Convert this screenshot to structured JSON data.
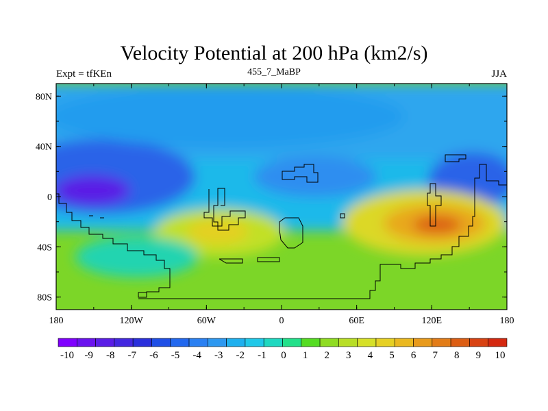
{
  "chart_data": {
    "type": "heatmap",
    "title": "Velocity Potential at 200 hPa (km2/s)",
    "left_label": "Expt = tfKEn",
    "center_label": "455_7_MaBP",
    "right_label": "JJA",
    "xticks": [
      "180",
      "120W",
      "60W",
      "0",
      "60E",
      "120E",
      "180"
    ],
    "yticks": [
      "80N",
      "40N",
      "0",
      "40S",
      "80S"
    ],
    "xlim": [
      -180,
      180
    ],
    "ylim": [
      -90,
      90
    ],
    "colorbar_labels": [
      "-10",
      "-9",
      "-8",
      "-7",
      "-6",
      "-5",
      "-4",
      "-3",
      "-2",
      "-1",
      "0",
      "1",
      "2",
      "3",
      "4",
      "5",
      "6",
      "7",
      "8",
      "9",
      "10"
    ],
    "colorbar_colors": [
      "#7f00ff",
      "#6a12ee",
      "#5a1de6",
      "#4327e0",
      "#2a2fdc",
      "#1f4fe6",
      "#2268ee",
      "#2a80f2",
      "#2d98f0",
      "#1fb0ee",
      "#20c8e8",
      "#1fd8c0",
      "#22e08a",
      "#55dc22",
      "#8fdc22",
      "#b8de26",
      "#d6e028",
      "#e6d024",
      "#eab820",
      "#e89a1c",
      "#e27c18",
      "#dc5e14",
      "#d84212",
      "#d42810"
    ],
    "field_extremes": [
      {
        "lon": -150,
        "lat": 2,
        "value": -9.5
      },
      {
        "lon": -40,
        "lat": 22,
        "value": -3
      },
      {
        "lon": 150,
        "lat": 8,
        "value": -5.5
      },
      {
        "lon": -60,
        "lat": -28,
        "value": 5
      },
      {
        "lon": 128,
        "lat": -25,
        "value": 8.5
      }
    ]
  }
}
